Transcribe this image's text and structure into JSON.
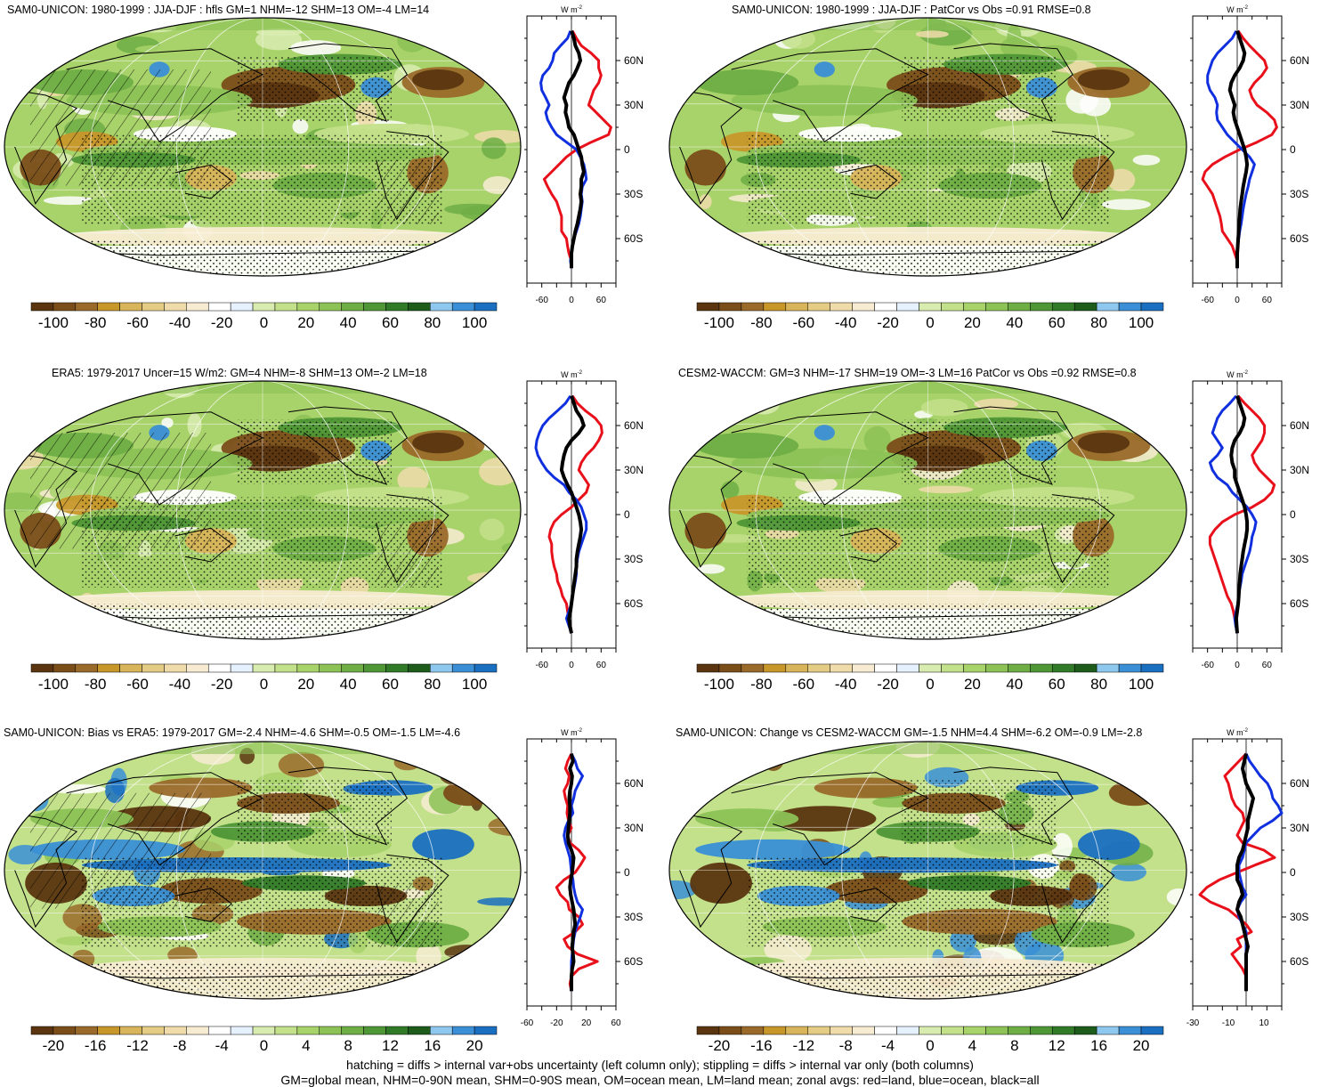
{
  "colors": {
    "land": "#e8101a",
    "ocean": "#1030e0",
    "all": "#000000",
    "scale": [
      "#5a3510",
      "#7a4d19",
      "#9a6a2a",
      "#c8972a",
      "#d8b45a",
      "#e5cc85",
      "#f0dcaa",
      "#f7ecd2",
      "#ffffff",
      "#e6f1ff",
      "#d9ecb0",
      "#c3e08a",
      "#a8d26a",
      "#8cc256",
      "#6eae45",
      "#4e9636",
      "#317a27",
      "#1d5c1a",
      "#8fc8ee",
      "#3a8fd6",
      "#1a6fc1"
    ]
  },
  "panels": [
    {
      "id": "p1",
      "title": "SAM0-UNICON: 1980-1999 : JJA-DJF : hfls GM=1 NHM=-12 SHM=13 OM=-4 LM=14",
      "units": "W m",
      "units_exp": "-2",
      "colorbar_labels": [
        "-100",
        "-80",
        "-60",
        "-40",
        "-20",
        "0",
        "20",
        "40",
        "60",
        "80",
        "100"
      ],
      "lat_ticks": [
        "60N",
        "30N",
        "0",
        "30S",
        "60S"
      ],
      "xtick_labels": [
        "-60",
        "0",
        "60"
      ],
      "hatched": true,
      "stippled": true
    },
    {
      "id": "p2",
      "title": "SAM0-UNICON: 1980-1999 : JJA-DJF : PatCor vs Obs =0.91 RMSE=0.8",
      "units": "W m",
      "units_exp": "-2",
      "colorbar_labels": [
        "-100",
        "-80",
        "-60",
        "-40",
        "-20",
        "0",
        "20",
        "40",
        "60",
        "80",
        "100"
      ],
      "lat_ticks": [
        "60N",
        "30N",
        "0",
        "30S",
        "60S"
      ],
      "xtick_labels": [
        "-60",
        "0",
        "60"
      ],
      "hatched": false,
      "stippled": true
    },
    {
      "id": "p3",
      "title": "ERA5: 1979-2017 Uncer=15 W/m2: GM=4 NHM=-8 SHM=13 OM=-2 LM=18",
      "units": "W m",
      "units_exp": "-2",
      "colorbar_labels": [
        "-100",
        "-80",
        "-60",
        "-40",
        "-20",
        "0",
        "20",
        "40",
        "60",
        "80",
        "100"
      ],
      "lat_ticks": [
        "60N",
        "30N",
        "0",
        "30S",
        "60S"
      ],
      "xtick_labels": [
        "-60",
        "0",
        "60"
      ],
      "hatched": true,
      "stippled": true
    },
    {
      "id": "p4",
      "title": "CESM2-WACCM: GM=3 NHM=-17 SHM=19 OM=-3 LM=16 PatCor vs Obs =0.92 RMSE=0.8",
      "units": "W m",
      "units_exp": "-2",
      "colorbar_labels": [
        "-100",
        "-80",
        "-60",
        "-40",
        "-20",
        "0",
        "20",
        "40",
        "60",
        "80",
        "100"
      ],
      "lat_ticks": [
        "60N",
        "30N",
        "0",
        "30S",
        "60S"
      ],
      "xtick_labels": [
        "-60",
        "0",
        "60"
      ],
      "hatched": false,
      "stippled": true
    },
    {
      "id": "p5",
      "title": "SAM0-UNICON: Bias vs ERA5: 1979-2017 GM=-2.4 NHM=-4.6 SHM=-0.5 OM=-1.5 LM=-4.6",
      "units": "W m",
      "units_exp": "-2",
      "colorbar_labels": [
        "-20",
        "-16",
        "-12",
        "-8",
        "-4",
        "0",
        "4",
        "8",
        "12",
        "16",
        "20"
      ],
      "lat_ticks": [
        "60N",
        "30N",
        "0",
        "30S",
        "60S"
      ],
      "xtick_labels": [
        "-60",
        "-20",
        "20",
        "60"
      ],
      "hatched": true,
      "stippled": true
    },
    {
      "id": "p6",
      "title": "SAM0-UNICON: Change vs CESM2-WACCM GM=-1.5 NHM=4.4 SHM=-6.2 OM=-0.9 LM=-2.8",
      "units": "W m",
      "units_exp": "-2",
      "colorbar_labels": [
        "-20",
        "-16",
        "-12",
        "-8",
        "-4",
        "0",
        "4",
        "8",
        "12",
        "16",
        "20"
      ],
      "lat_ticks": [
        "60N",
        "30N",
        "0",
        "30S",
        "60S"
      ],
      "xtick_labels": [
        "-30",
        "-10",
        "10"
      ],
      "hatched": false,
      "stippled": true
    }
  ],
  "chart_data": [
    {
      "type": "line",
      "panel": "p1",
      "ylabel": "W m-2",
      "xlim": [
        -90,
        90
      ],
      "ylim": [
        -90,
        90
      ],
      "y": [
        80,
        75,
        70,
        65,
        60,
        55,
        50,
        45,
        40,
        35,
        30,
        25,
        20,
        15,
        10,
        5,
        0,
        -5,
        -10,
        -15,
        -20,
        -25,
        -30,
        -35,
        -40,
        -45,
        -50,
        -55,
        -60,
        -65,
        -70,
        -75,
        -80
      ],
      "series": [
        {
          "name": "land",
          "values": [
            2,
            10,
            20,
            40,
            55,
            55,
            60,
            55,
            45,
            40,
            35,
            50,
            65,
            80,
            75,
            40,
            10,
            -10,
            -25,
            -40,
            -55,
            -48,
            -40,
            -30,
            -25,
            -20,
            -20,
            -20,
            -10,
            -8,
            -5,
            0,
            0
          ]
        },
        {
          "name": "ocean",
          "values": [
            -2,
            -8,
            -22,
            -35,
            -38,
            -45,
            -58,
            -62,
            -60,
            -52,
            -45,
            -52,
            -48,
            -40,
            -30,
            -10,
            10,
            18,
            25,
            28,
            30,
            22,
            20,
            22,
            20,
            18,
            15,
            10,
            5,
            2,
            0,
            -2,
            0
          ]
        },
        {
          "name": "all",
          "values": [
            0,
            5,
            8,
            15,
            18,
            12,
            5,
            -5,
            -10,
            -15,
            -10,
            -12,
            -8,
            -5,
            5,
            10,
            15,
            20,
            22,
            25,
            20,
            20,
            18,
            20,
            18,
            15,
            12,
            8,
            5,
            2,
            0,
            0,
            0
          ]
        }
      ]
    },
    {
      "type": "line",
      "panel": "p2",
      "ylabel": "W m-2",
      "xlim": [
        -90,
        90
      ],
      "ylim": [
        -90,
        90
      ],
      "y": [
        80,
        75,
        70,
        65,
        60,
        55,
        50,
        45,
        40,
        35,
        30,
        25,
        20,
        15,
        10,
        5,
        0,
        -5,
        -10,
        -15,
        -20,
        -25,
        -30,
        -35,
        -40,
        -45,
        -50,
        -55,
        -60,
        -65,
        -70,
        -75,
        -80
      ],
      "series": [
        {
          "name": "land",
          "values": [
            2,
            12,
            25,
            40,
            55,
            60,
            50,
            35,
            25,
            30,
            40,
            60,
            75,
            80,
            70,
            40,
            5,
            -25,
            -50,
            -65,
            -70,
            -60,
            -50,
            -45,
            -40,
            -35,
            -32,
            -30,
            -20,
            -10,
            -5,
            0,
            0
          ]
        },
        {
          "name": "ocean",
          "values": [
            -2,
            -10,
            -25,
            -40,
            -50,
            -55,
            -60,
            -60,
            -55,
            -45,
            -40,
            -42,
            -40,
            -30,
            -20,
            -5,
            10,
            25,
            35,
            30,
            25,
            22,
            18,
            15,
            12,
            10,
            8,
            5,
            3,
            1,
            0,
            0,
            0
          ]
        },
        {
          "name": "all",
          "values": [
            0,
            5,
            10,
            15,
            12,
            5,
            -5,
            -12,
            -15,
            -10,
            -5,
            -8,
            -5,
            0,
            5,
            10,
            15,
            18,
            20,
            18,
            15,
            12,
            10,
            8,
            6,
            5,
            4,
            3,
            2,
            1,
            0,
            0,
            0
          ]
        }
      ]
    },
    {
      "type": "line",
      "panel": "p3",
      "ylabel": "W m-2",
      "xlim": [
        -90,
        90
      ],
      "ylim": [
        -90,
        90
      ],
      "y": [
        80,
        75,
        70,
        65,
        60,
        55,
        50,
        45,
        40,
        35,
        30,
        25,
        20,
        15,
        10,
        5,
        0,
        -5,
        -10,
        -15,
        -20,
        -25,
        -30,
        -35,
        -40,
        -45,
        -50,
        -55,
        -60,
        -65,
        -70,
        -75,
        -80
      ],
      "series": [
        {
          "name": "land",
          "values": [
            2,
            12,
            28,
            48,
            60,
            62,
            55,
            45,
            30,
            20,
            15,
            25,
            35,
            30,
            15,
            0,
            -20,
            -35,
            -42,
            -45,
            -40,
            -40,
            -38,
            -35,
            -30,
            -28,
            -22,
            -18,
            -10,
            -8,
            -5,
            -2,
            0
          ]
        },
        {
          "name": "ocean",
          "values": [
            -2,
            -12,
            -28,
            -45,
            -58,
            -65,
            -70,
            -72,
            -68,
            -60,
            -50,
            -35,
            -15,
            -5,
            10,
            20,
            25,
            30,
            30,
            25,
            20,
            15,
            12,
            10,
            10,
            8,
            5,
            2,
            0,
            -5,
            -10,
            -5,
            0
          ]
        },
        {
          "name": "all",
          "values": [
            0,
            5,
            10,
            20,
            25,
            15,
            0,
            -10,
            -15,
            -18,
            -20,
            -15,
            -8,
            0,
            5,
            10,
            15,
            18,
            20,
            18,
            15,
            12,
            10,
            10,
            8,
            6,
            4,
            2,
            0,
            -2,
            -5,
            -3,
            0
          ]
        }
      ]
    },
    {
      "type": "line",
      "panel": "p4",
      "ylabel": "W m-2",
      "xlim": [
        -90,
        90
      ],
      "ylim": [
        -90,
        90
      ],
      "y": [
        80,
        75,
        70,
        65,
        60,
        55,
        50,
        45,
        40,
        35,
        30,
        25,
        20,
        15,
        10,
        5,
        0,
        -5,
        -10,
        -15,
        -20,
        -25,
        -30,
        -35,
        -40,
        -45,
        -50,
        -55,
        -60,
        -65,
        -70,
        -75,
        -80
      ],
      "series": [
        {
          "name": "land",
          "values": [
            2,
            15,
            30,
            45,
            55,
            55,
            50,
            40,
            30,
            35,
            45,
            60,
            75,
            70,
            55,
            30,
            -5,
            -30,
            -45,
            -55,
            -55,
            -50,
            -45,
            -40,
            -35,
            -30,
            -25,
            -20,
            -12,
            -8,
            -5,
            -2,
            0
          ]
        },
        {
          "name": "ocean",
          "values": [
            -2,
            -15,
            -30,
            -40,
            -45,
            -50,
            -40,
            -30,
            -40,
            -55,
            -50,
            -40,
            -20,
            -10,
            5,
            20,
            30,
            38,
            35,
            30,
            28,
            25,
            20,
            15,
            10,
            8,
            5,
            3,
            1,
            -2,
            -5,
            -3,
            0
          ]
        },
        {
          "name": "all",
          "values": [
            0,
            5,
            10,
            15,
            12,
            5,
            -5,
            -10,
            -12,
            -10,
            -5,
            -5,
            0,
            5,
            10,
            15,
            18,
            20,
            20,
            18,
            15,
            12,
            10,
            8,
            6,
            5,
            4,
            3,
            2,
            0,
            -2,
            -1,
            0
          ]
        }
      ]
    },
    {
      "type": "line",
      "panel": "p5",
      "ylabel": "W m-2",
      "xlim": [
        -60,
        60
      ],
      "ylim": [
        -90,
        90
      ],
      "y": [
        80,
        75,
        70,
        65,
        60,
        55,
        50,
        45,
        40,
        35,
        30,
        25,
        20,
        15,
        10,
        5,
        0,
        -5,
        -10,
        -15,
        -20,
        -25,
        -30,
        -35,
        -40,
        -45,
        -50,
        -55,
        -60,
        -65,
        -70,
        -75,
        -80
      ],
      "series": [
        {
          "name": "land",
          "values": [
            0,
            -5,
            -8,
            -3,
            -5,
            -10,
            -8,
            -5,
            -6,
            -4,
            0,
            -5,
            -2,
            10,
            18,
            12,
            5,
            -10,
            -20,
            -15,
            -5,
            -3,
            10,
            15,
            5,
            -10,
            -5,
            8,
            35,
            10,
            0,
            -2,
            0
          ]
        },
        {
          "name": "ocean",
          "values": [
            0,
            5,
            8,
            15,
            10,
            5,
            3,
            0,
            2,
            -4,
            -8,
            -10,
            -8,
            -5,
            -2,
            -1,
            0,
            2,
            3,
            5,
            8,
            15,
            12,
            8,
            5,
            3,
            2,
            1,
            0,
            0,
            0,
            0,
            0
          ]
        },
        {
          "name": "all",
          "values": [
            0,
            2,
            -2,
            1,
            0,
            -2,
            -3,
            -2,
            -2,
            -3,
            -4,
            -5,
            -4,
            0,
            3,
            2,
            1,
            -1,
            -2,
            -1,
            1,
            3,
            4,
            5,
            3,
            2,
            1,
            2,
            3,
            1,
            0,
            0,
            0
          ]
        }
      ]
    },
    {
      "type": "line",
      "panel": "p6",
      "ylabel": "W m-2",
      "xlim": [
        -30,
        20
      ],
      "ylim": [
        -90,
        90
      ],
      "y": [
        80,
        75,
        70,
        65,
        60,
        55,
        50,
        45,
        40,
        35,
        30,
        25,
        20,
        15,
        10,
        5,
        0,
        -5,
        -10,
        -15,
        -20,
        -25,
        -30,
        -35,
        -40,
        -45,
        -50,
        -55,
        -60,
        -65,
        -70,
        -75,
        -80
      ],
      "series": [
        {
          "name": "land",
          "values": [
            0,
            -4,
            -8,
            -12,
            -10,
            -9,
            -8,
            -6,
            -2,
            -1,
            -3,
            -5,
            -2,
            10,
            16,
            5,
            -5,
            -15,
            -22,
            -26,
            -20,
            -10,
            -5,
            0,
            3,
            -5,
            -3,
            -8,
            -5,
            -2,
            0,
            0,
            0
          ]
        },
        {
          "name": "ocean",
          "values": [
            0,
            2,
            5,
            8,
            12,
            14,
            15,
            18,
            20,
            15,
            8,
            4,
            0,
            -1,
            -2,
            -4,
            -4,
            -3,
            -2,
            0,
            -3,
            -5,
            -4,
            -2,
            0,
            0,
            0,
            0,
            0,
            0,
            0,
            0,
            0
          ]
        },
        {
          "name": "all",
          "values": [
            0,
            -1,
            -2,
            -1,
            0,
            2,
            4,
            3,
            2,
            1,
            1,
            0,
            -1,
            -2,
            -4,
            -5,
            -5,
            -5,
            -3,
            -2,
            -4,
            -5,
            -3,
            -2,
            -1,
            0,
            1,
            0,
            0,
            0,
            0,
            0,
            0
          ]
        }
      ]
    }
  ],
  "footer": {
    "line1": "hatching = diffs > internal var+obs uncertainty (left column only); stippling = diffs > internal var only (both columns)",
    "line2": "GM=global mean, NHM=0-90N mean, SHM=0-90S mean, OM=ocean mean, LM=land mean; zonal avgs: red=land, blue=ocean, black=all"
  }
}
